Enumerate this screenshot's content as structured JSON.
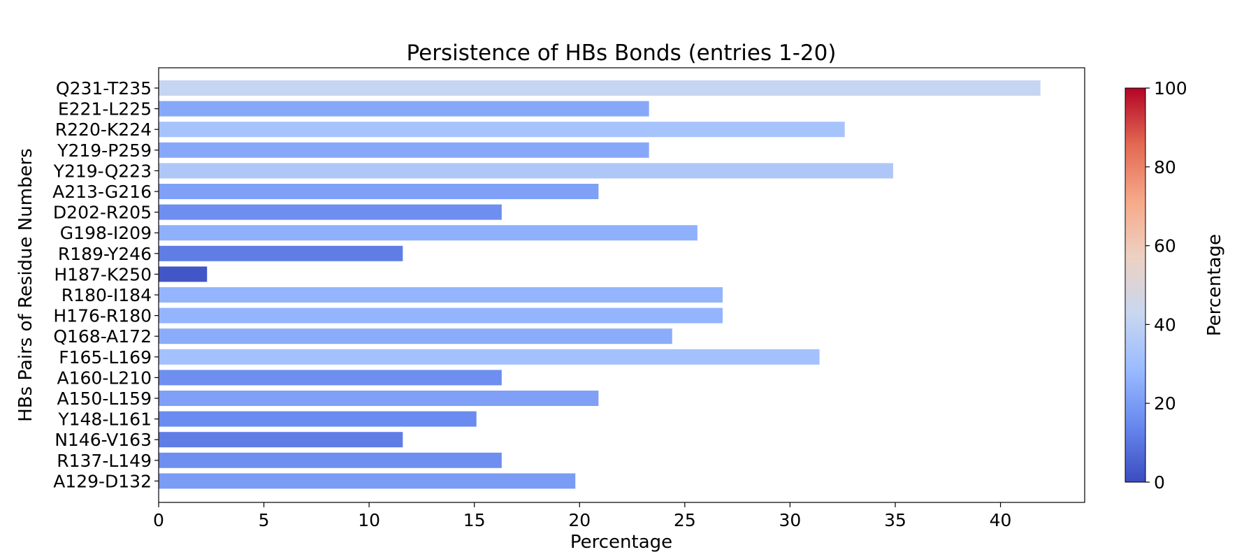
{
  "chart_data": {
    "type": "bar",
    "orientation": "horizontal",
    "title": "Persistence of HBs Bonds (entries 1-20)",
    "xlabel": "Percentage",
    "ylabel": "HBs Pairs of Residue Numbers",
    "xlim": [
      0,
      44
    ],
    "xticks": [
      0,
      5,
      10,
      15,
      20,
      25,
      30,
      35,
      40
    ],
    "categories": [
      "Q231-T235",
      "E221-L225",
      "R220-K224",
      "Y219-P259",
      "Y219-Q223",
      "A213-G216",
      "D202-R205",
      "G198-I209",
      "R189-Y246",
      "H187-K250",
      "R180-I184",
      "H176-R180",
      "Q168-A172",
      "F165-L169",
      "A160-L210",
      "A150-L159",
      "Y148-L161",
      "N146-V163",
      "R137-L149",
      "A129-D132"
    ],
    "values": [
      41.9,
      23.3,
      32.6,
      23.3,
      34.9,
      20.9,
      16.3,
      25.6,
      11.6,
      2.3,
      26.8,
      26.8,
      24.4,
      31.4,
      16.3,
      20.9,
      15.1,
      11.6,
      16.3,
      19.8
    ],
    "grid": false,
    "colorbar": {
      "label": "Percentage",
      "range": [
        0,
        100
      ],
      "ticks": [
        0,
        20,
        40,
        60,
        80,
        100
      ],
      "colormap": "coolwarm",
      "stops": [
        "#3b4cc0",
        "#6788ee",
        "#9abbff",
        "#c9d7f0",
        "#edd1c2",
        "#f7a889",
        "#e26952",
        "#b40426"
      ]
    }
  }
}
